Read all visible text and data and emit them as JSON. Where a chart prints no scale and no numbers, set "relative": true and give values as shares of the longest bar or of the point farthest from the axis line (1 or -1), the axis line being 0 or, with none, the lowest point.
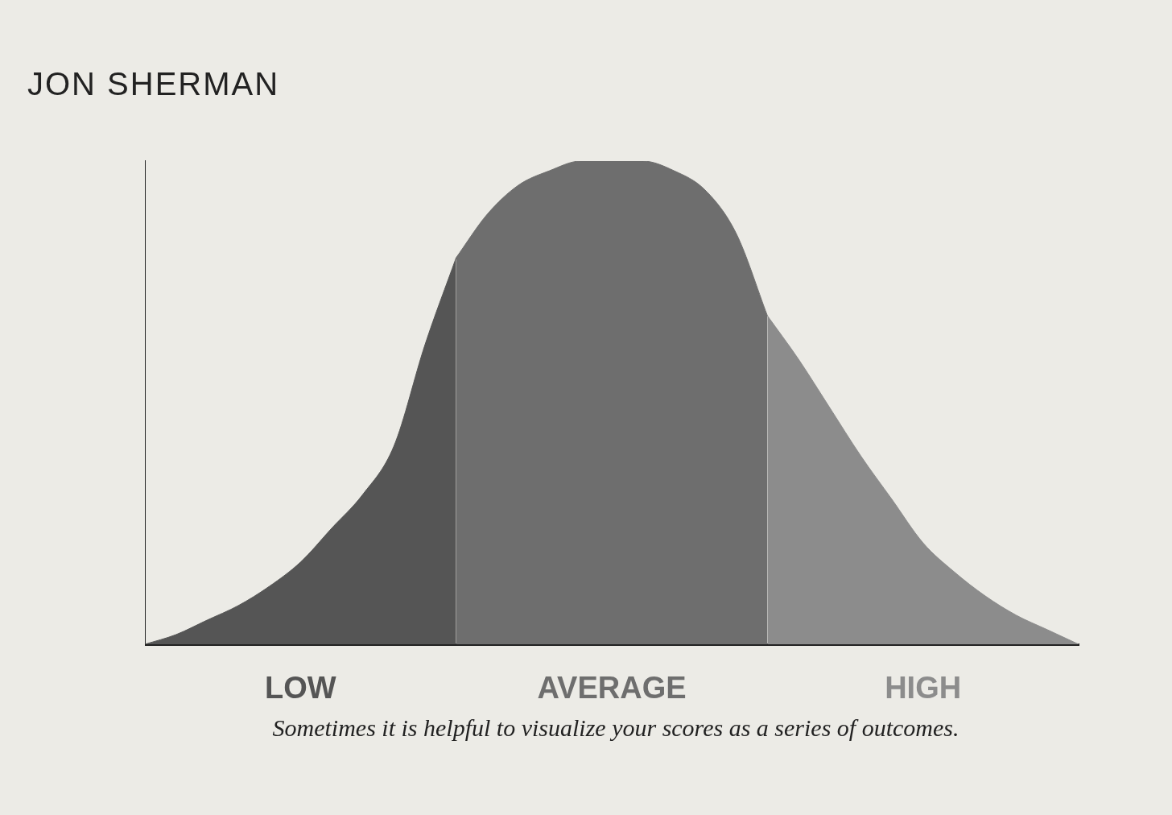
{
  "chart_data": {
    "type": "area",
    "relative": true,
    "tick_labels": false,
    "grid": false,
    "categories": [
      null,
      null,
      null,
      null,
      null,
      null,
      null,
      null,
      null,
      null,
      null,
      null,
      null,
      null,
      null,
      null,
      null,
      null,
      null,
      null,
      null,
      null,
      null,
      null,
      null,
      null,
      null,
      null,
      null,
      null,
      null
    ],
    "series": [
      {
        "name": "LOW",
        "color": "#555555",
        "values": [
          0.0,
          0.02,
          0.05,
          0.08,
          0.12,
          0.17,
          0.24,
          0.31,
          0.41,
          0.62,
          0.8,
          null,
          null,
          null,
          null,
          null,
          null,
          null,
          null,
          null,
          null,
          null,
          null,
          null,
          null,
          null,
          null,
          null,
          null,
          null,
          null
        ]
      },
      {
        "name": "AVERAGE",
        "color": "#6e6e6e",
        "values": [
          null,
          null,
          null,
          null,
          null,
          null,
          null,
          null,
          null,
          null,
          0.8,
          0.89,
          0.95,
          0.98,
          1.0,
          1.0,
          1.0,
          0.98,
          0.94,
          0.85,
          0.68,
          null,
          null,
          null,
          null,
          null,
          null,
          null,
          null,
          null,
          null
        ]
      },
      {
        "name": "HIGH",
        "color": "#8c8c8c",
        "values": [
          null,
          null,
          null,
          null,
          null,
          null,
          null,
          null,
          null,
          null,
          null,
          null,
          null,
          null,
          null,
          null,
          null,
          null,
          null,
          null,
          0.68,
          0.59,
          0.49,
          0.39,
          0.3,
          0.21,
          0.15,
          0.1,
          0.06,
          0.03,
          0.0
        ]
      }
    ],
    "annotations": [
      "JON SHERMAN",
      "Sometimes it is helpful to visualize your scores as a series of outcomes."
    ]
  }
}
